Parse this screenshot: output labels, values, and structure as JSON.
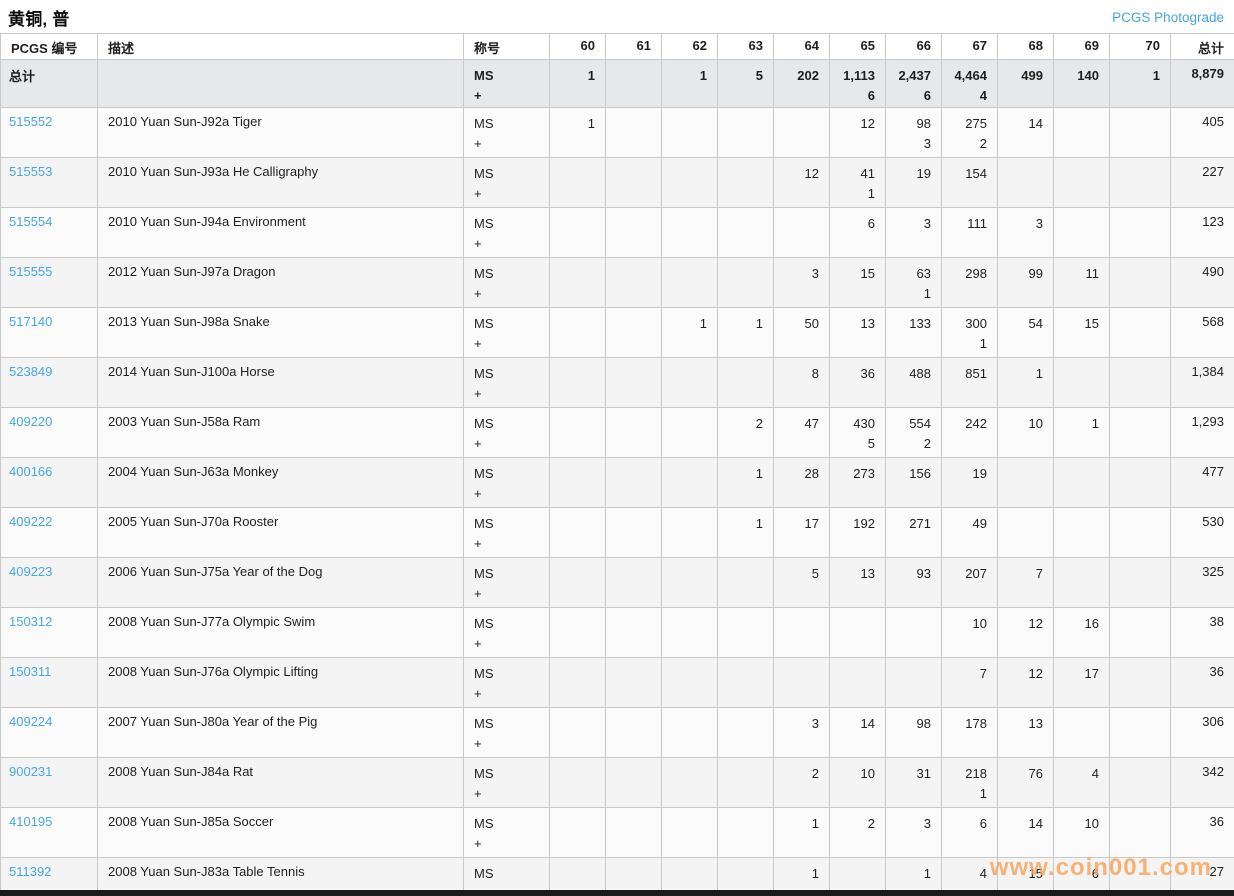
{
  "page": {
    "title": "黄铜, 普",
    "link": "PCGS Photograde",
    "watermark": "www.coin001.com"
  },
  "colors": {
    "link_blue": "#45a5e2",
    "total_row_bg": "#e6e9eb",
    "row_alt_bg": "#f4f4f4",
    "watermark_orange": "#f6a45a"
  },
  "table": {
    "headers": {
      "id": "PCGS 编号",
      "desc": "描述",
      "designation": "称号",
      "grades": [
        "60",
        "61",
        "62",
        "63",
        "64",
        "65",
        "66",
        "67",
        "68",
        "69",
        "70"
      ],
      "total": "总计"
    },
    "designation_line1": "MS",
    "designation_line2": "+",
    "total_row": {
      "label": "总计",
      "grades": [
        [
          "1",
          ""
        ],
        [
          "",
          ""
        ],
        [
          "1",
          ""
        ],
        [
          "5",
          ""
        ],
        [
          "202",
          ""
        ],
        [
          "1,113",
          "6"
        ],
        [
          "2,437",
          "6"
        ],
        [
          "4,464",
          "4"
        ],
        [
          "499",
          ""
        ],
        [
          "140",
          ""
        ],
        [
          "1",
          ""
        ]
      ],
      "total": "8,879"
    },
    "rows": [
      {
        "id": "515552",
        "desc": "2010 Yuan Sun-J92a Tiger",
        "grades": [
          [
            "1",
            ""
          ],
          [
            "",
            ""
          ],
          [
            "",
            ""
          ],
          [
            "",
            ""
          ],
          [
            "",
            ""
          ],
          [
            "12",
            ""
          ],
          [
            "98",
            "3"
          ],
          [
            "275",
            "2"
          ],
          [
            "14",
            ""
          ],
          [
            "",
            ""
          ],
          [
            "",
            ""
          ]
        ],
        "total": "405"
      },
      {
        "id": "515553",
        "desc": "2010 Yuan Sun-J93a He Calligraphy",
        "grades": [
          [
            "",
            ""
          ],
          [
            "",
            ""
          ],
          [
            "",
            ""
          ],
          [
            "",
            ""
          ],
          [
            "12",
            ""
          ],
          [
            "41",
            "1"
          ],
          [
            "19",
            ""
          ],
          [
            "154",
            ""
          ],
          [
            "",
            ""
          ],
          [
            "",
            ""
          ],
          [
            "",
            ""
          ]
        ],
        "total": "227"
      },
      {
        "id": "515554",
        "desc": "2010 Yuan Sun-J94a Environment",
        "grades": [
          [
            "",
            ""
          ],
          [
            "",
            ""
          ],
          [
            "",
            ""
          ],
          [
            "",
            ""
          ],
          [
            "",
            ""
          ],
          [
            "6",
            ""
          ],
          [
            "3",
            ""
          ],
          [
            "111",
            ""
          ],
          [
            "3",
            ""
          ],
          [
            "",
            ""
          ],
          [
            "",
            ""
          ]
        ],
        "total": "123"
      },
      {
        "id": "515555",
        "desc": "2012 Yuan Sun-J97a Dragon",
        "grades": [
          [
            "",
            ""
          ],
          [
            "",
            ""
          ],
          [
            "",
            ""
          ],
          [
            "",
            ""
          ],
          [
            "3",
            ""
          ],
          [
            "15",
            ""
          ],
          [
            "63",
            "1"
          ],
          [
            "298",
            ""
          ],
          [
            "99",
            ""
          ],
          [
            "11",
            ""
          ],
          [
            "",
            ""
          ]
        ],
        "total": "490"
      },
      {
        "id": "517140",
        "desc": "2013 Yuan Sun-J98a Snake",
        "grades": [
          [
            "",
            ""
          ],
          [
            "",
            ""
          ],
          [
            "1",
            ""
          ],
          [
            "1",
            ""
          ],
          [
            "50",
            ""
          ],
          [
            "13",
            ""
          ],
          [
            "133",
            ""
          ],
          [
            "300",
            "1"
          ],
          [
            "54",
            ""
          ],
          [
            "15",
            ""
          ],
          [
            "",
            ""
          ]
        ],
        "total": "568"
      },
      {
        "id": "523849",
        "desc": "2014 Yuan Sun-J100a Horse",
        "grades": [
          [
            "",
            ""
          ],
          [
            "",
            ""
          ],
          [
            "",
            ""
          ],
          [
            "",
            ""
          ],
          [
            "8",
            ""
          ],
          [
            "36",
            ""
          ],
          [
            "488",
            ""
          ],
          [
            "851",
            ""
          ],
          [
            "1",
            ""
          ],
          [
            "",
            ""
          ],
          [
            "",
            ""
          ]
        ],
        "total": "1,384"
      },
      {
        "id": "409220",
        "desc": "2003 Yuan Sun-J58a Ram",
        "grades": [
          [
            "",
            ""
          ],
          [
            "",
            ""
          ],
          [
            "",
            ""
          ],
          [
            "2",
            ""
          ],
          [
            "47",
            ""
          ],
          [
            "430",
            "5"
          ],
          [
            "554",
            "2"
          ],
          [
            "242",
            ""
          ],
          [
            "10",
            ""
          ],
          [
            "1",
            ""
          ],
          [
            "",
            ""
          ]
        ],
        "total": "1,293"
      },
      {
        "id": "400166",
        "desc": "2004 Yuan Sun-J63a Monkey",
        "grades": [
          [
            "",
            ""
          ],
          [
            "",
            ""
          ],
          [
            "",
            ""
          ],
          [
            "1",
            ""
          ],
          [
            "28",
            ""
          ],
          [
            "273",
            ""
          ],
          [
            "156",
            ""
          ],
          [
            "19",
            ""
          ],
          [
            "",
            ""
          ],
          [
            "",
            ""
          ],
          [
            "",
            ""
          ]
        ],
        "total": "477"
      },
      {
        "id": "409222",
        "desc": "2005 Yuan Sun-J70a Rooster",
        "grades": [
          [
            "",
            ""
          ],
          [
            "",
            ""
          ],
          [
            "",
            ""
          ],
          [
            "1",
            ""
          ],
          [
            "17",
            ""
          ],
          [
            "192",
            ""
          ],
          [
            "271",
            ""
          ],
          [
            "49",
            ""
          ],
          [
            "",
            ""
          ],
          [
            "",
            ""
          ],
          [
            "",
            ""
          ]
        ],
        "total": "530"
      },
      {
        "id": "409223",
        "desc": "2006 Yuan Sun-J75a Year of the Dog",
        "grades": [
          [
            "",
            ""
          ],
          [
            "",
            ""
          ],
          [
            "",
            ""
          ],
          [
            "",
            ""
          ],
          [
            "5",
            ""
          ],
          [
            "13",
            ""
          ],
          [
            "93",
            ""
          ],
          [
            "207",
            ""
          ],
          [
            "7",
            ""
          ],
          [
            "",
            ""
          ],
          [
            "",
            ""
          ]
        ],
        "total": "325"
      },
      {
        "id": "150312",
        "desc": "2008 Yuan Sun-J77a Olympic Swim",
        "grades": [
          [
            "",
            ""
          ],
          [
            "",
            ""
          ],
          [
            "",
            ""
          ],
          [
            "",
            ""
          ],
          [
            "",
            ""
          ],
          [
            "",
            ""
          ],
          [
            "",
            ""
          ],
          [
            "10",
            ""
          ],
          [
            "12",
            ""
          ],
          [
            "16",
            ""
          ],
          [
            "",
            ""
          ]
        ],
        "total": "38"
      },
      {
        "id": "150311",
        "desc": "2008 Yuan Sun-J76a Olympic Lifting",
        "grades": [
          [
            "",
            ""
          ],
          [
            "",
            ""
          ],
          [
            "",
            ""
          ],
          [
            "",
            ""
          ],
          [
            "",
            ""
          ],
          [
            "",
            ""
          ],
          [
            "",
            ""
          ],
          [
            "7",
            ""
          ],
          [
            "12",
            ""
          ],
          [
            "17",
            ""
          ],
          [
            "",
            ""
          ]
        ],
        "total": "36"
      },
      {
        "id": "409224",
        "desc": "2007 Yuan Sun-J80a Year of the Pig",
        "grades": [
          [
            "",
            ""
          ],
          [
            "",
            ""
          ],
          [
            "",
            ""
          ],
          [
            "",
            ""
          ],
          [
            "3",
            ""
          ],
          [
            "14",
            ""
          ],
          [
            "98",
            ""
          ],
          [
            "178",
            ""
          ],
          [
            "13",
            ""
          ],
          [
            "",
            ""
          ],
          [
            "",
            ""
          ]
        ],
        "total": "306"
      },
      {
        "id": "900231",
        "desc": "2008 Yuan Sun-J84a Rat",
        "grades": [
          [
            "",
            ""
          ],
          [
            "",
            ""
          ],
          [
            "",
            ""
          ],
          [
            "",
            ""
          ],
          [
            "2",
            ""
          ],
          [
            "10",
            ""
          ],
          [
            "31",
            ""
          ],
          [
            "218",
            "1"
          ],
          [
            "76",
            ""
          ],
          [
            "4",
            ""
          ],
          [
            "",
            ""
          ]
        ],
        "total": "342"
      },
      {
        "id": "410195",
        "desc": "2008 Yuan Sun-J85a Soccer",
        "grades": [
          [
            "",
            ""
          ],
          [
            "",
            ""
          ],
          [
            "",
            ""
          ],
          [
            "",
            ""
          ],
          [
            "1",
            ""
          ],
          [
            "2",
            ""
          ],
          [
            "3",
            ""
          ],
          [
            "6",
            ""
          ],
          [
            "14",
            ""
          ],
          [
            "10",
            ""
          ],
          [
            "",
            ""
          ]
        ],
        "total": "36"
      },
      {
        "id": "511392",
        "desc": "2008 Yuan Sun-J83a Table Tennis",
        "grades": [
          [
            "",
            ""
          ],
          [
            "",
            ""
          ],
          [
            "",
            ""
          ],
          [
            "",
            ""
          ],
          [
            "1",
            ""
          ],
          [
            "",
            ""
          ],
          [
            "1",
            ""
          ],
          [
            "4",
            ""
          ],
          [
            "15",
            ""
          ],
          [
            "6",
            ""
          ],
          [
            "",
            ""
          ]
        ],
        "total": "27"
      }
    ]
  }
}
